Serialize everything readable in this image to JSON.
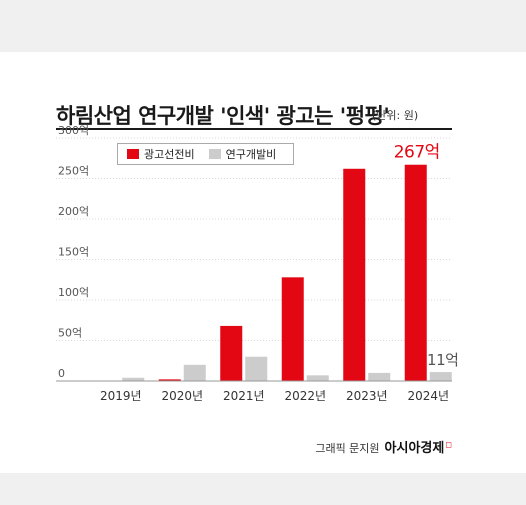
{
  "title": "하림산업 연구개발 '인색' 광고는 '펑펑'",
  "unit_note": "(단위: 원)",
  "credit": {
    "label": "그래픽 문지원",
    "brand": "아시아경제"
  },
  "colors": {
    "ad": "#e30613",
    "rnd": "#cccccc",
    "text": "#222222",
    "highlight": "#e30613",
    "muted": "#555555"
  },
  "chart_data": {
    "type": "bar",
    "title": "하림산업 연구개발 '인색' 광고는 '펑펑'",
    "xlabel": "",
    "ylabel": "",
    "categories": [
      "2019년",
      "2020년",
      "2021년",
      "2022년",
      "2023년",
      "2024년"
    ],
    "series": [
      {
        "name": "광고선전비",
        "values": [
          0,
          2,
          68,
          128,
          262,
          267
        ]
      },
      {
        "name": "연구개발비",
        "values": [
          4,
          20,
          30,
          7,
          10,
          11
        ]
      }
    ],
    "ylim": [
      0,
      300
    ],
    "yticks": [
      0,
      50,
      100,
      150,
      200,
      250,
      300
    ],
    "ytick_labels": [
      "0",
      "50억",
      "100억",
      "150억",
      "200억",
      "250억",
      "300억"
    ],
    "annotations": [
      {
        "series": "광고선전비",
        "category": "2024년",
        "text": "267억",
        "color": "#e30613"
      },
      {
        "series": "연구개발비",
        "category": "2024년",
        "text": "11억",
        "color": "#555555"
      }
    ],
    "grid": true,
    "legend": "top-left"
  }
}
